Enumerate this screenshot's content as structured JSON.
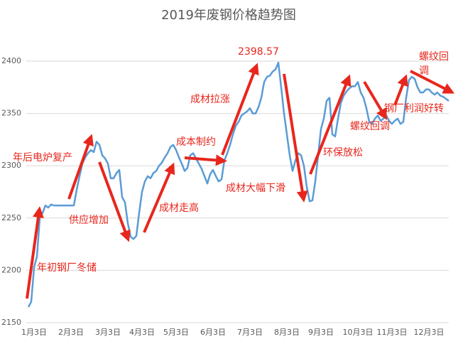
{
  "chart_data": {
    "type": "line",
    "title": "2019年废钢价格趋势图",
    "categories": [
      null,
      null,
      "1月3日",
      null,
      null,
      null,
      null,
      null,
      null,
      null,
      null,
      null,
      null,
      null,
      null,
      "2月3日",
      null,
      null,
      null,
      null,
      null,
      null,
      null,
      null,
      null,
      null,
      null,
      null,
      "3月3日",
      null,
      null,
      null,
      null,
      null,
      null,
      null,
      null,
      null,
      null,
      null,
      "4月3日",
      null,
      null,
      null,
      null,
      null,
      null,
      null,
      null,
      null,
      null,
      null,
      "5月3日",
      null,
      null,
      null,
      null,
      null,
      null,
      null,
      null,
      null,
      null,
      null,
      null,
      "6月3日",
      null,
      null,
      null,
      null,
      null,
      null,
      null,
      null,
      null,
      null,
      null,
      null,
      "7月3日",
      null,
      null,
      null,
      null,
      null,
      null,
      null,
      null,
      null,
      null,
      null,
      null,
      "8月3日",
      null,
      null,
      null,
      null,
      null,
      null,
      null,
      null,
      null,
      null,
      null,
      "9月3日",
      null,
      null,
      null,
      null,
      null,
      null,
      null,
      null,
      null,
      null,
      null,
      null,
      "10月3日",
      null,
      null,
      null,
      null,
      null,
      null,
      null,
      null,
      null,
      null,
      null,
      "11月3日",
      null,
      null,
      null,
      null,
      null,
      null,
      null,
      null,
      null,
      null,
      null,
      null,
      "12月3日",
      null,
      null,
      null,
      null,
      null,
      null,
      null
    ],
    "values": [
      2165,
      2170,
      2203,
      2213,
      2250,
      2255,
      2262,
      2260,
      2263,
      2262,
      2262,
      2262,
      2262,
      2262,
      2262,
      2262,
      2262,
      2277,
      2290,
      2302,
      2308,
      2312,
      2315,
      2313,
      2323,
      2320,
      2310,
      2307,
      2302,
      2288,
      2288,
      2293,
      2296,
      2270,
      2265,
      2245,
      2232,
      2230,
      2233,
      2255,
      2275,
      2285,
      2290,
      2288,
      2293,
      2295,
      2300,
      2303,
      2308,
      2312,
      2318,
      2320,
      2315,
      2308,
      2302,
      2295,
      2298,
      2310,
      2312,
      2307,
      2302,
      2297,
      2290,
      2283,
      2292,
      2296,
      2290,
      2285,
      2287,
      2305,
      2312,
      2320,
      2330,
      2338,
      2342,
      2348,
      2350,
      2352,
      2355,
      2350,
      2350,
      2356,
      2365,
      2380,
      2385,
      2386,
      2390,
      2392,
      2398.57,
      2375,
      2350,
      2330,
      2310,
      2295,
      2305,
      2312,
      2310,
      2300,
      2280,
      2266,
      2267,
      2285,
      2310,
      2335,
      2345,
      2362,
      2365,
      2330,
      2328,
      2345,
      2360,
      2367,
      2371,
      2374,
      2376,
      2376,
      2380,
      2370,
      2365,
      2355,
      2342,
      2340,
      2345,
      2348,
      2343,
      2345,
      2348,
      2343,
      2340,
      2343,
      2345,
      2340,
      2342,
      2365,
      2382,
      2385,
      2383,
      2375,
      2370,
      2370,
      2373,
      2373,
      2370,
      2368,
      2370,
      2367,
      2366,
      2364,
      2362
    ],
    "color": "#5b9bd5",
    "annotation_color": "#e8261c",
    "peak_index": 88,
    "ylim": [
      2150,
      2400
    ],
    "yticks": [
      2150,
      2200,
      2250,
      2300,
      2350,
      2400
    ],
    "grid": true,
    "annotations": [
      "年初钢厂冬储",
      "年后电炉复产",
      "供应增加",
      "成材走高",
      "成本制约",
      "成材拉涨",
      "成材大幅下滑",
      "环保放松",
      "螺纹回调",
      "钢厂利润好转",
      "螺纹回调"
    ]
  }
}
